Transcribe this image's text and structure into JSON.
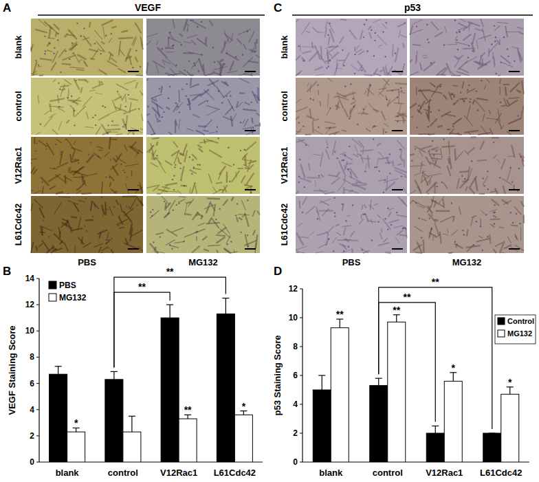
{
  "image_panels": [
    {
      "letter": "A",
      "title": "VEGF",
      "rows": [
        "blank",
        "control",
        "V12Rac1",
        "L61Cdc42"
      ],
      "columns": [
        "PBS",
        "MG132"
      ]
    },
    {
      "letter": "C",
      "title": "p53",
      "rows": [
        "blank",
        "control",
        "V12Rac1",
        "L61Cdc42"
      ],
      "columns": [
        "PBS",
        "MG132"
      ]
    }
  ],
  "chart_data": [
    {
      "type": "bar",
      "panel": "B",
      "y_label": "VEGF Staining Score",
      "categories": [
        "blank",
        "control",
        "V12Rac1",
        "L61Cdc42"
      ],
      "series": [
        {
          "name": "PBS",
          "color": "#000000",
          "values": [
            6.7,
            6.3,
            11.0,
            11.3
          ],
          "errors": [
            0.6,
            0.6,
            1.0,
            1.2
          ],
          "significance": [
            null,
            null,
            null,
            null
          ]
        },
        {
          "name": "MG132",
          "color": "#ffffff",
          "values": [
            2.3,
            2.3,
            3.3,
            3.6
          ],
          "errors": [
            0.3,
            1.2,
            0.3,
            0.3
          ],
          "significance": [
            "*",
            null,
            "**",
            "*"
          ]
        }
      ],
      "brackets": [
        {
          "from": "control",
          "to": "V12Rac1",
          "label": "**"
        },
        {
          "from": "control",
          "to": "L61Cdc42",
          "label": "**"
        }
      ],
      "ylim": [
        0,
        14
      ],
      "yticks": [
        0,
        2,
        4,
        6,
        8,
        10,
        12,
        14
      ],
      "legend": "top-left",
      "grid": false
    },
    {
      "type": "bar",
      "panel": "D",
      "y_label": "p53 Staining Score",
      "categories": [
        "blank",
        "control",
        "V12Rac1",
        "L61Cdc42"
      ],
      "series": [
        {
          "name": "Control",
          "color": "#000000",
          "values": [
            5.0,
            5.3,
            2.0,
            2.0
          ],
          "errors": [
            1.0,
            0.5,
            0.5,
            0.0
          ],
          "significance": [
            null,
            null,
            null,
            null
          ]
        },
        {
          "name": "MG132",
          "color": "#ffffff",
          "values": [
            9.3,
            9.7,
            5.6,
            4.7
          ],
          "errors": [
            0.6,
            0.5,
            0.6,
            0.5
          ],
          "significance": [
            "**",
            "**",
            "*",
            "*"
          ]
        }
      ],
      "brackets": [
        {
          "from": "control",
          "to": "V12Rac1",
          "label": "**"
        },
        {
          "from": "control",
          "to": "L61Cdc42",
          "label": "**"
        }
      ],
      "ylim": [
        0,
        12
      ],
      "yticks": [
        0,
        2,
        4,
        6,
        8,
        10,
        12
      ],
      "legend": "right",
      "grid": false
    }
  ]
}
